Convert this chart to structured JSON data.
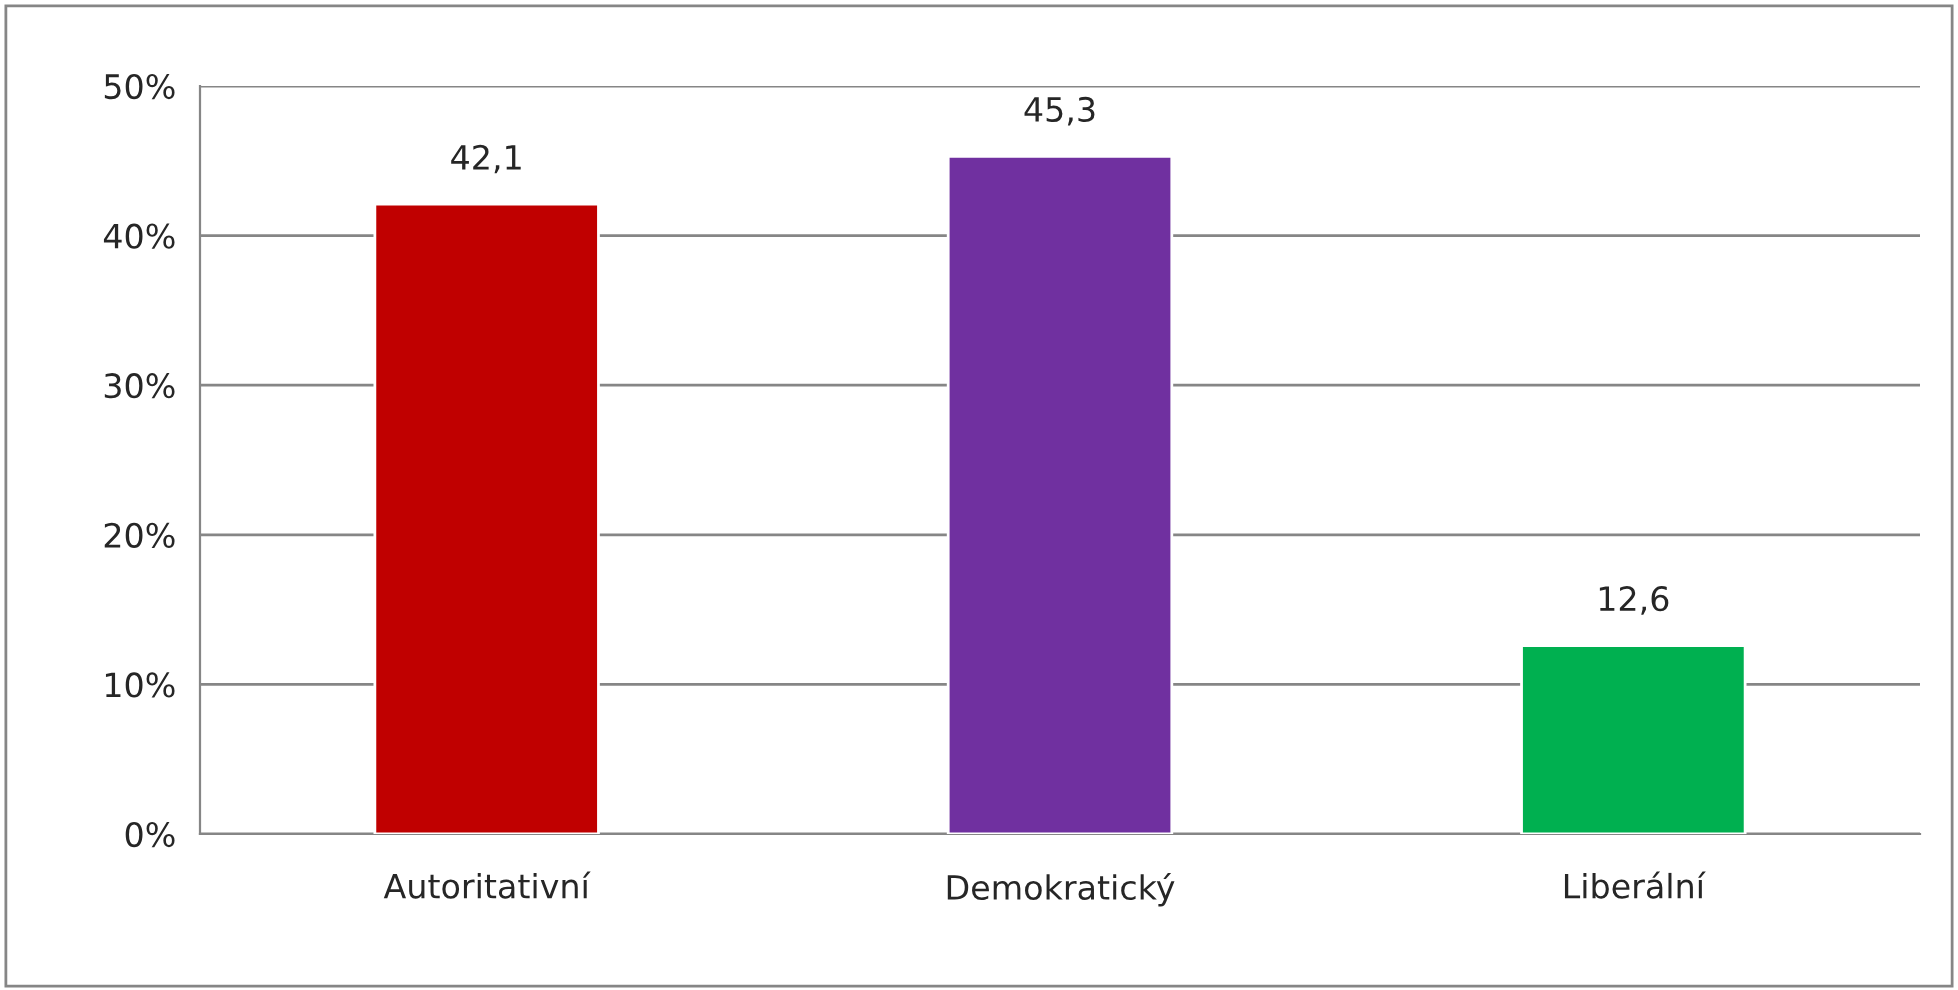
{
  "chart_data": {
    "type": "bar",
    "categories": [
      "Autoritativní",
      "Demokratický",
      "Liberální"
    ],
    "values": [
      42.1,
      45.3,
      12.6
    ],
    "colors": [
      "#c00000",
      "#7030a0",
      "#00b050"
    ],
    "value_labels": [
      "42,1",
      "45,3",
      "12,6"
    ],
    "ylim": [
      0,
      50
    ],
    "yticks": [
      {
        "value": 0,
        "label": "0%"
      },
      {
        "value": 10,
        "label": "10%"
      },
      {
        "value": 20,
        "label": "20%"
      },
      {
        "value": 30,
        "label": "30%"
      },
      {
        "value": 40,
        "label": "40%"
      },
      {
        "value": 50,
        "label": "50%"
      }
    ],
    "grid": "y"
  }
}
